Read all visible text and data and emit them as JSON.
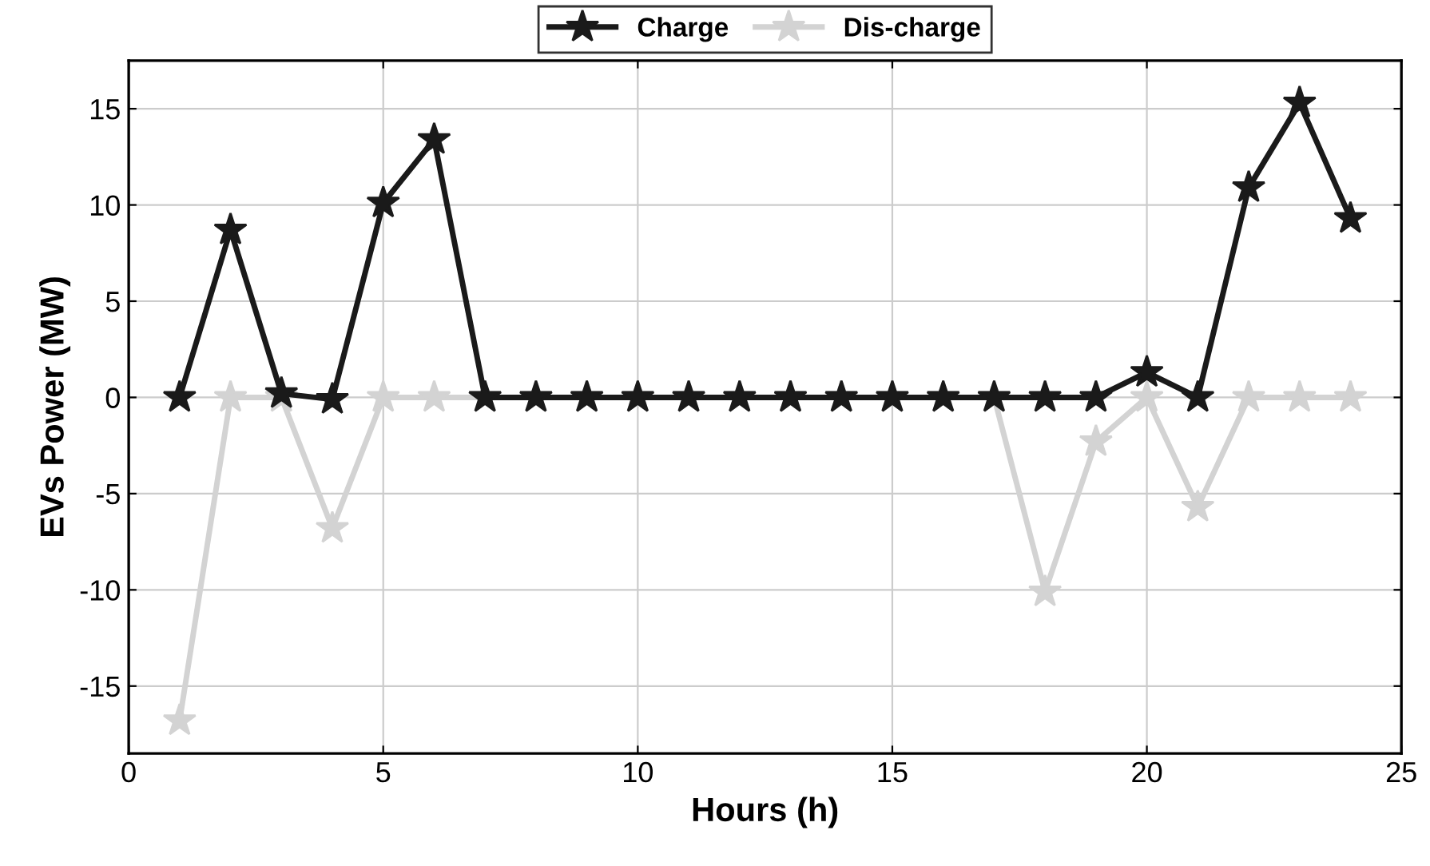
{
  "chart_data": {
    "type": "line",
    "xlabel": "Hours (h)",
    "ylabel": "EVs Power (MW)",
    "x": [
      1,
      2,
      3,
      4,
      5,
      6,
      7,
      8,
      9,
      10,
      11,
      12,
      13,
      14,
      15,
      16,
      17,
      18,
      19,
      20,
      21,
      22,
      23,
      24
    ],
    "series": [
      {
        "name": "Charge",
        "color": "#1a1a1a",
        "values": [
          0,
          8.7,
          0.2,
          -0.1,
          10.1,
          13.4,
          0,
          0,
          0,
          0,
          0,
          0,
          0,
          0,
          0,
          0,
          0,
          0,
          0,
          1.3,
          0,
          10.9,
          15.3,
          9.3
        ]
      },
      {
        "name": "Dis-charge",
        "color": "#d3d3d3",
        "values": [
          -16.8,
          0,
          0,
          -6.8,
          0,
          0,
          0,
          0,
          0,
          0,
          0,
          0,
          0,
          0,
          0,
          0,
          0,
          -10.1,
          -2.3,
          0,
          -5.7,
          0,
          0,
          0
        ]
      }
    ],
    "xlim": [
      0,
      25
    ],
    "xticks": [
      0,
      5,
      10,
      15,
      20,
      25
    ],
    "ylim": [
      -18.5,
      17.5
    ],
    "yticks": [
      -15,
      -10,
      -5,
      0,
      5,
      10,
      15
    ],
    "grid": true,
    "legend": "top",
    "marker": "star",
    "line_style": "solid"
  }
}
